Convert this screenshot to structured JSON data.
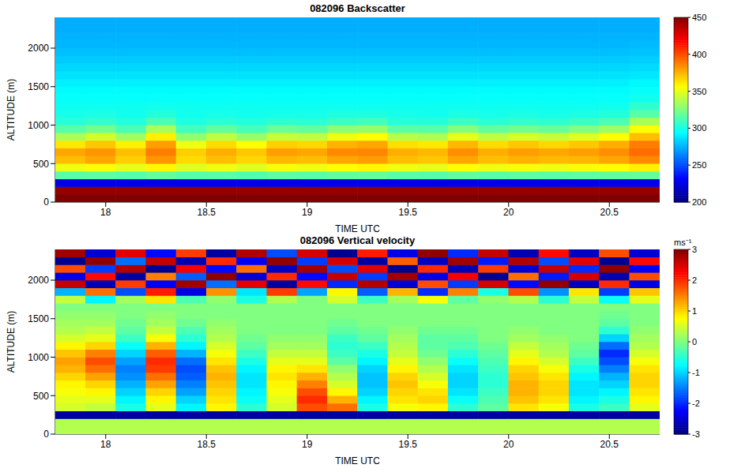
{
  "chart_data": [
    {
      "type": "heatmap",
      "title": "082096 Backscatter",
      "x_label": "TIME UTC",
      "y_label": "ALTITUDE (m)",
      "x": [
        17.825,
        17.975,
        18.125,
        18.275,
        18.425,
        18.575,
        18.725,
        18.875,
        19.025,
        19.175,
        19.325,
        19.475,
        19.625,
        19.775,
        19.925,
        20.075,
        20.225,
        20.375,
        20.525,
        20.675
      ],
      "y": [
        50,
        150,
        250,
        350,
        450,
        550,
        650,
        750,
        850,
        950,
        1050,
        1150,
        1250,
        1350,
        1450,
        1550,
        1650,
        1750,
        1850,
        1950,
        2050,
        2150,
        2250,
        2350
      ],
      "values": [
        [
          450,
          445,
          225,
          315,
          352,
          372,
          378,
          362,
          335,
          315,
          303,
          299,
          297,
          295,
          293,
          290,
          287,
          284,
          281,
          278,
          276,
          275,
          274,
          274
        ],
        [
          450,
          445,
          225,
          316,
          355,
          378,
          382,
          370,
          345,
          322,
          306,
          300,
          297,
          295,
          293,
          290,
          287,
          284,
          281,
          278,
          276,
          275,
          274,
          274
        ],
        [
          450,
          445,
          225,
          314,
          350,
          368,
          372,
          360,
          332,
          312,
          302,
          298,
          297,
          295,
          293,
          290,
          287,
          284,
          281,
          278,
          276,
          275,
          274,
          274
        ],
        [
          450,
          445,
          225,
          318,
          358,
          382,
          388,
          380,
          360,
          335,
          312,
          302,
          298,
          295,
          293,
          290,
          287,
          284,
          281,
          278,
          276,
          275,
          274,
          274
        ],
        [
          450,
          445,
          225,
          314,
          348,
          365,
          368,
          352,
          328,
          310,
          301,
          298,
          297,
          295,
          293,
          290,
          287,
          284,
          281,
          278,
          276,
          275,
          274,
          274
        ],
        [
          450,
          445,
          225,
          315,
          352,
          372,
          376,
          365,
          340,
          318,
          304,
          299,
          297,
          295,
          293,
          290,
          287,
          284,
          281,
          278,
          276,
          275,
          274,
          274
        ],
        [
          450,
          445,
          225,
          313,
          348,
          366,
          370,
          356,
          330,
          311,
          302,
          298,
          297,
          295,
          293,
          290,
          287,
          284,
          281,
          278,
          276,
          275,
          274,
          274
        ],
        [
          450,
          445,
          225,
          316,
          354,
          374,
          380,
          368,
          342,
          320,
          305,
          299,
          297,
          295,
          293,
          290,
          287,
          284,
          281,
          278,
          276,
          275,
          274,
          274
        ],
        [
          450,
          445,
          225,
          315,
          352,
          372,
          378,
          366,
          340,
          318,
          304,
          299,
          297,
          295,
          293,
          290,
          287,
          284,
          281,
          278,
          276,
          275,
          274,
          274
        ],
        [
          450,
          445,
          225,
          317,
          356,
          378,
          385,
          375,
          352,
          328,
          308,
          301,
          297,
          295,
          293,
          290,
          287,
          284,
          281,
          278,
          276,
          275,
          274,
          274
        ],
        [
          450,
          445,
          225,
          318,
          358,
          380,
          386,
          378,
          356,
          330,
          310,
          301,
          297,
          295,
          293,
          290,
          287,
          284,
          281,
          278,
          276,
          275,
          274,
          274
        ],
        [
          450,
          445,
          225,
          315,
          352,
          372,
          376,
          364,
          338,
          316,
          303,
          299,
          297,
          295,
          293,
          290,
          287,
          284,
          281,
          278,
          276,
          275,
          274,
          274
        ],
        [
          450,
          445,
          225,
          314,
          350,
          370,
          374,
          362,
          336,
          315,
          303,
          298,
          297,
          295,
          293,
          290,
          287,
          284,
          281,
          278,
          276,
          275,
          274,
          274
        ],
        [
          450,
          445,
          225,
          317,
          356,
          378,
          384,
          374,
          350,
          326,
          308,
          300,
          297,
          295,
          293,
          290,
          287,
          284,
          281,
          278,
          276,
          275,
          274,
          274
        ],
        [
          450,
          445,
          225,
          315,
          352,
          372,
          376,
          365,
          340,
          318,
          304,
          299,
          297,
          295,
          293,
          290,
          287,
          284,
          281,
          278,
          276,
          275,
          274,
          274
        ],
        [
          450,
          445,
          225,
          316,
          354,
          375,
          380,
          370,
          346,
          322,
          306,
          300,
          297,
          295,
          293,
          290,
          287,
          284,
          281,
          278,
          276,
          275,
          274,
          274
        ],
        [
          450,
          445,
          225,
          315,
          352,
          373,
          378,
          366,
          342,
          319,
          305,
          299,
          297,
          295,
          293,
          290,
          287,
          284,
          281,
          278,
          276,
          275,
          274,
          274
        ],
        [
          450,
          445,
          225,
          316,
          354,
          374,
          380,
          370,
          348,
          325,
          308,
          300,
          297,
          295,
          293,
          290,
          287,
          284,
          281,
          278,
          276,
          275,
          274,
          274
        ],
        [
          450,
          445,
          225,
          317,
          356,
          378,
          384,
          376,
          356,
          332,
          312,
          302,
          298,
          295,
          293,
          290,
          287,
          284,
          281,
          278,
          276,
          275,
          274,
          274
        ],
        [
          450,
          445,
          225,
          318,
          360,
          385,
          392,
          388,
          372,
          355,
          335,
          315,
          305,
          298,
          295,
          292,
          288,
          285,
          282,
          279,
          277,
          275,
          274,
          274
        ]
      ],
      "xlim": [
        17.75,
        20.75
      ],
      "ylim": [
        0,
        2400
      ],
      "xticks": [
        18,
        18.5,
        19,
        19.5,
        20,
        20.5
      ],
      "yticks": [
        0,
        500,
        1000,
        1500,
        2000
      ],
      "colorbar_range": [
        200,
        450
      ],
      "colorbar_ticks": [
        200,
        250,
        300,
        350,
        400,
        450
      ]
    },
    {
      "type": "heatmap",
      "title": "082096 Vertical velocity",
      "x_label": "TIME UTC",
      "y_label": "ALTITUDE (m)",
      "x": [
        17.825,
        17.975,
        18.125,
        18.275,
        18.425,
        18.575,
        18.725,
        18.875,
        19.025,
        19.175,
        19.325,
        19.475,
        19.625,
        19.775,
        19.925,
        20.075,
        20.225,
        20.375,
        20.525,
        20.675
      ],
      "y": [
        50,
        150,
        250,
        350,
        450,
        550,
        650,
        750,
        850,
        950,
        1050,
        1150,
        1250,
        1350,
        1450,
        1550,
        1650,
        1750,
        1850,
        1950,
        2050,
        2150,
        2250,
        2350
      ],
      "values": [
        [
          0.3,
          0.3,
          -2.8,
          0.5,
          0.6,
          0.7,
          0.8,
          1.0,
          1.2,
          1.3,
          1.1,
          0.8,
          0.5,
          0.3,
          0.2,
          0.1,
          0.0,
          0.4,
          -1.2,
          2.6,
          -2.4,
          1.8,
          -2.9,
          2.8
        ],
        [
          0.3,
          0.3,
          -2.8,
          0.4,
          0.6,
          0.8,
          1.0,
          1.3,
          1.6,
          1.8,
          1.5,
          1.0,
          0.6,
          0.4,
          0.2,
          0.1,
          0.0,
          -0.8,
          1.6,
          -2.7,
          2.2,
          -1.9,
          2.9,
          -2.5
        ],
        [
          0.3,
          0.3,
          -2.8,
          -0.6,
          -0.8,
          -1.0,
          -1.2,
          -1.4,
          -1.5,
          -1.3,
          -1.0,
          -0.7,
          -0.4,
          -0.2,
          -0.1,
          0.0,
          0.0,
          0.2,
          -1.8,
          1.9,
          -2.8,
          2.7,
          -1.6,
          2.4
        ],
        [
          0.3,
          0.3,
          -2.8,
          0.6,
          0.8,
          1.0,
          1.3,
          1.6,
          1.9,
          2.0,
          1.7,
          1.2,
          0.7,
          0.4,
          0.2,
          0.1,
          0.0,
          0.9,
          2.1,
          -2.3,
          1.5,
          -2.9,
          2.6,
          -2.2
        ],
        [
          0.3,
          0.3,
          -2.8,
          -0.8,
          -1.0,
          -1.3,
          -1.5,
          -1.7,
          -1.8,
          -1.6,
          -1.2,
          -0.8,
          -0.5,
          -0.3,
          -0.1,
          0.0,
          0.0,
          -0.3,
          -2.4,
          2.8,
          -1.7,
          2.3,
          -2.7,
          1.9
        ],
        [
          0.3,
          0.3,
          -2.8,
          0.8,
          0.9,
          1.0,
          1.1,
          1.2,
          1.1,
          0.9,
          0.7,
          0.5,
          0.3,
          0.2,
          0.1,
          0.0,
          0.0,
          0.1,
          1.4,
          -1.6,
          2.9,
          -2.2,
          2.0,
          -2.8
        ],
        [
          0.3,
          0.3,
          -2.8,
          -0.5,
          -0.7,
          -0.8,
          -0.9,
          -0.9,
          -0.8,
          -0.6,
          -0.4,
          -0.2,
          -0.1,
          0.0,
          0.0,
          0.0,
          0.0,
          -0.6,
          -0.9,
          2.4,
          -2.5,
          1.6,
          -2.3,
          2.7
        ],
        [
          0.3,
          0.3,
          -2.8,
          0.5,
          0.6,
          0.7,
          0.8,
          0.9,
          0.8,
          0.6,
          0.4,
          0.2,
          0.1,
          0.0,
          0.0,
          0.0,
          0.0,
          0.3,
          1.9,
          -2.8,
          2.0,
          -2.6,
          2.9,
          -1.8
        ],
        [
          0.3,
          0.3,
          -2.8,
          1.8,
          2.0,
          1.8,
          1.5,
          1.2,
          0.9,
          0.6,
          0.4,
          0.2,
          0.1,
          0.0,
          0.0,
          0.0,
          0.0,
          0.0,
          -1.3,
          2.2,
          -2.2,
          2.8,
          -1.9,
          2.5
        ],
        [
          0.3,
          0.3,
          -2.8,
          1.6,
          1.2,
          0.8,
          0.5,
          0.3,
          0.1,
          -0.2,
          -0.4,
          -0.5,
          -0.4,
          -0.2,
          -0.1,
          0.0,
          0.0,
          0.5,
          0.8,
          -2.0,
          2.6,
          -1.8,
          2.5,
          -2.9
        ],
        [
          0.3,
          0.3,
          -2.8,
          -0.6,
          -0.8,
          -1.0,
          -1.1,
          -1.1,
          -1.0,
          -0.8,
          -0.6,
          -0.4,
          -0.2,
          -0.1,
          0.0,
          0.0,
          0.0,
          -0.4,
          -1.7,
          2.7,
          -1.9,
          2.4,
          -2.8,
          2.1
        ],
        [
          0.3,
          0.3,
          -2.8,
          0.7,
          0.9,
          1.0,
          1.1,
          1.0,
          0.8,
          0.6,
          0.4,
          0.3,
          0.2,
          0.1,
          0.0,
          0.0,
          0.0,
          0.2,
          1.2,
          -2.5,
          2.8,
          -2.9,
          1.7,
          -2.4
        ],
        [
          0.3,
          0.3,
          -2.8,
          0.8,
          1.0,
          0.9,
          0.7,
          0.5,
          0.3,
          0.1,
          -0.1,
          -0.2,
          -0.2,
          -0.1,
          0.0,
          0.0,
          0.0,
          0.7,
          -2.0,
          1.8,
          -2.4,
          2.0,
          -2.6,
          2.9
        ],
        [
          0.3,
          0.3,
          -2.8,
          -0.5,
          -0.7,
          -0.9,
          -1.0,
          -1.0,
          -0.9,
          -0.7,
          -0.5,
          -0.3,
          -0.2,
          -0.1,
          0.0,
          0.0,
          0.0,
          -0.2,
          1.5,
          -1.9,
          2.3,
          -2.7,
          2.8,
          -2.0
        ],
        [
          0.3,
          0.3,
          -2.8,
          -0.2,
          -0.3,
          -0.4,
          -0.5,
          -0.5,
          -0.4,
          -0.3,
          -0.2,
          -0.1,
          0.0,
          0.0,
          0.0,
          0.0,
          0.0,
          0.1,
          -0.6,
          2.5,
          -2.9,
          1.9,
          -2.1,
          2.6
        ],
        [
          0.3,
          0.3,
          -2.8,
          0.9,
          1.1,
          1.2,
          1.2,
          1.1,
          1.0,
          0.8,
          0.6,
          0.4,
          0.2,
          0.1,
          0.0,
          0.0,
          0.0,
          0.3,
          1.8,
          -2.2,
          1.6,
          -2.5,
          2.7,
          -2.7
        ],
        [
          0.3,
          0.3,
          -2.8,
          0.7,
          0.9,
          1.0,
          1.0,
          0.9,
          0.7,
          0.5,
          0.3,
          0.2,
          0.1,
          0.0,
          0.0,
          0.0,
          0.0,
          -0.5,
          -1.4,
          2.9,
          -2.1,
          2.6,
          -1.8,
          2.2
        ],
        [
          0.3,
          0.3,
          -2.8,
          -0.6,
          -0.8,
          -0.9,
          -0.9,
          -0.8,
          -0.6,
          -0.4,
          -0.2,
          -0.1,
          0.0,
          0.0,
          0.0,
          0.0,
          0.0,
          0.4,
          0.9,
          -2.6,
          2.5,
          -2.0,
          2.4,
          -2.6
        ],
        [
          0.3,
          0.3,
          -2.8,
          -0.4,
          -0.6,
          -0.8,
          -1.0,
          -1.2,
          -1.5,
          -1.8,
          -2.0,
          -1.6,
          -1.0,
          -0.5,
          -0.2,
          -0.1,
          0.0,
          -0.7,
          -1.9,
          2.0,
          -2.7,
          2.9,
          -2.9,
          1.8
        ],
        [
          0.3,
          0.3,
          -2.8,
          0.6,
          0.8,
          0.9,
          1.0,
          1.0,
          0.9,
          0.7,
          0.5,
          0.3,
          0.2,
          0.1,
          0.0,
          0.0,
          0.0,
          0.6,
          1.1,
          -2.4,
          1.8,
          -2.3,
          2.2,
          -2.5
        ]
      ],
      "xlim": [
        17.75,
        20.75
      ],
      "ylim": [
        0,
        2400
      ],
      "xticks": [
        18,
        18.5,
        19,
        19.5,
        20,
        20.5
      ],
      "yticks": [
        0,
        500,
        1000,
        1500,
        2000
      ],
      "colorbar_range": [
        -3,
        3
      ],
      "colorbar_ticks": [
        -3,
        -2,
        -1,
        0,
        1,
        2,
        3
      ],
      "colorbar_label": "ms⁻¹"
    }
  ]
}
